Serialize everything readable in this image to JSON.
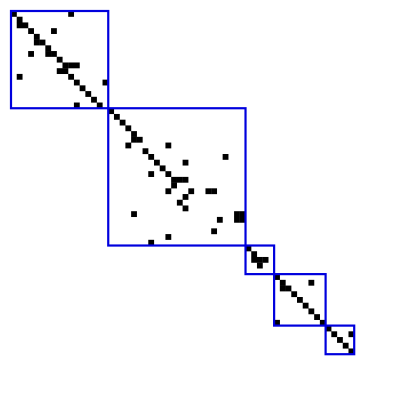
{
  "chart_data": {
    "type": "sparsity-pattern",
    "matrix_size": 60,
    "marker_color": "#000000",
    "block_color": "#0000dd",
    "blocks": [
      {
        "start": 0,
        "end": 17
      },
      {
        "start": 17,
        "end": 41
      },
      {
        "start": 41,
        "end": 46
      },
      {
        "start": 46,
        "end": 55
      },
      {
        "start": 55,
        "end": 60
      }
    ],
    "nonzeros": [
      [
        0,
        0
      ],
      [
        0,
        10
      ],
      [
        1,
        1
      ],
      [
        2,
        1
      ],
      [
        2,
        2
      ],
      [
        3,
        3
      ],
      [
        3,
        7
      ],
      [
        4,
        4
      ],
      [
        5,
        4
      ],
      [
        5,
        5
      ],
      [
        6,
        6
      ],
      [
        7,
        3
      ],
      [
        7,
        6
      ],
      [
        7,
        7
      ],
      [
        8,
        8
      ],
      [
        9,
        9
      ],
      [
        9,
        10
      ],
      [
        9,
        11
      ],
      [
        10,
        8
      ],
      [
        10,
        9
      ],
      [
        11,
        1
      ],
      [
        11,
        10
      ],
      [
        12,
        11
      ],
      [
        12,
        16
      ],
      [
        13,
        12
      ],
      [
        14,
        13
      ],
      [
        15,
        14
      ],
      [
        16,
        11
      ],
      [
        16,
        15
      ],
      [
        17,
        17
      ],
      [
        18,
        18
      ],
      [
        19,
        19
      ],
      [
        20,
        20
      ],
      [
        21,
        21
      ],
      [
        22,
        21
      ],
      [
        22,
        22
      ],
      [
        23,
        20
      ],
      [
        23,
        27
      ],
      [
        24,
        23
      ],
      [
        25,
        24
      ],
      [
        25,
        37
      ],
      [
        26,
        25
      ],
      [
        26,
        30
      ],
      [
        27,
        26
      ],
      [
        28,
        24
      ],
      [
        28,
        27
      ],
      [
        29,
        28
      ],
      [
        29,
        29
      ],
      [
        29,
        30
      ],
      [
        30,
        28
      ],
      [
        31,
        27
      ],
      [
        31,
        31
      ],
      [
        31,
        34
      ],
      [
        31,
        35
      ],
      [
        32,
        30
      ],
      [
        33,
        29
      ],
      [
        34,
        30
      ],
      [
        35,
        21
      ],
      [
        35,
        39
      ],
      [
        35,
        40
      ],
      [
        36,
        36
      ],
      [
        36,
        39
      ],
      [
        36,
        40
      ],
      [
        38,
        35
      ],
      [
        39,
        27
      ],
      [
        40,
        24
      ],
      [
        41,
        41
      ],
      [
        42,
        42
      ],
      [
        43,
        42
      ],
      [
        43,
        43
      ],
      [
        43,
        44
      ],
      [
        44,
        43
      ],
      [
        46,
        46
      ],
      [
        47,
        47
      ],
      [
        47,
        52
      ],
      [
        48,
        47
      ],
      [
        48,
        48
      ],
      [
        49,
        49
      ],
      [
        50,
        50
      ],
      [
        51,
        51
      ],
      [
        52,
        52
      ],
      [
        53,
        53
      ],
      [
        54,
        46
      ],
      [
        54,
        54
      ],
      [
        55,
        55
      ],
      [
        56,
        56
      ],
      [
        56,
        59
      ],
      [
        57,
        57
      ],
      [
        58,
        58
      ],
      [
        59,
        59
      ]
    ]
  }
}
